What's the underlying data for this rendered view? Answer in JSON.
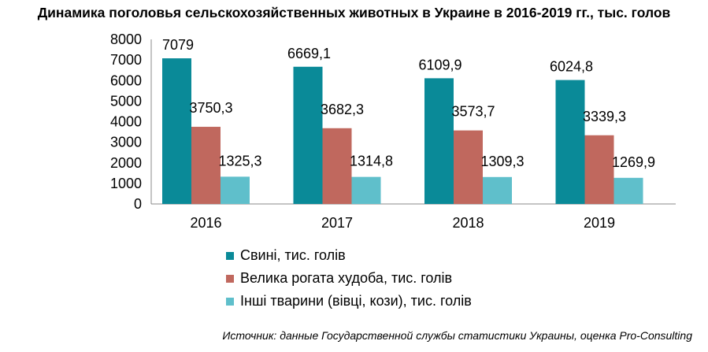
{
  "chart_data": {
    "type": "bar",
    "title": "Динамика поголовья сельскохозяйственных животных в Украине в 2016-2019 гг., тыс. голов",
    "categories": [
      "2016",
      "2017",
      "2018",
      "2019"
    ],
    "series": [
      {
        "name": "Свині, тис. голів",
        "values": [
          7079,
          6669.1,
          6109.9,
          6024.8
        ],
        "labels": [
          "7079",
          "6669,1",
          "6109,9",
          "6024,8"
        ],
        "color": "#0A8A98"
      },
      {
        "name": "Велика рогата худоба, тис. голів",
        "values": [
          3750.3,
          3682.3,
          3573.7,
          3339.3
        ],
        "labels": [
          "3750,3",
          "3682,3",
          "3573,7",
          "3339,3"
        ],
        "color": "#C0685E"
      },
      {
        "name": "Інші тварини (вівці, кози), тис. голів",
        "values": [
          1325.3,
          1314.8,
          1309.3,
          1269.9
        ],
        "labels": [
          "1325,3",
          "1314,8",
          "1309,3",
          "1269,9"
        ],
        "color": "#5FBFCB"
      }
    ],
    "yticks": [
      "0",
      "1000",
      "2000",
      "3000",
      "4000",
      "5000",
      "6000",
      "7000",
      "8000"
    ],
    "ylim": [
      0,
      8000
    ],
    "xlabel": "",
    "ylabel": "",
    "grid": false,
    "legend_position": "bottom"
  },
  "source_note": "Источник: данные Государственной службы статистики Украины, оценка Pro-Consulting"
}
